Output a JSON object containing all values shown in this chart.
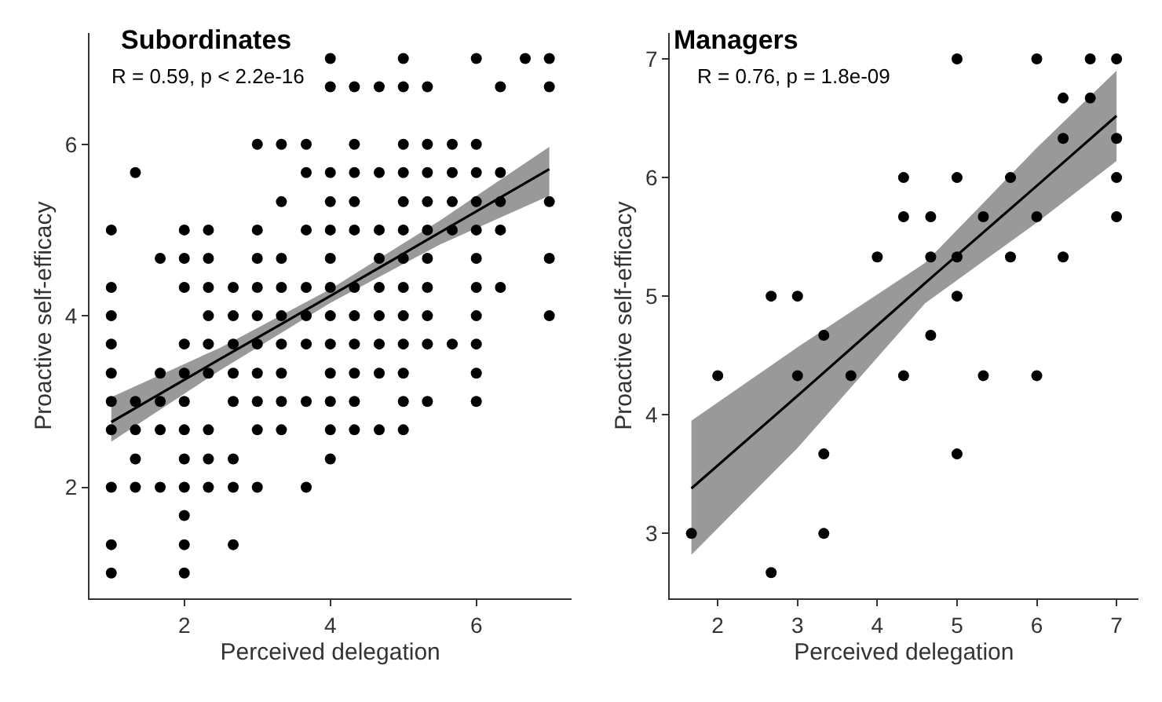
{
  "chart_data": [
    {
      "type": "scatter",
      "title": "Subordinates",
      "xlabel": "Perceived delegation",
      "ylabel": "Proactive self-efficacy",
      "annotations": [
        "R = 0.59, p < 2.2e-16"
      ],
      "xlim": [
        0.7,
        7.3
      ],
      "ylim": [
        0.7,
        7.3
      ],
      "xticks": [
        2,
        4,
        6
      ],
      "yticks": [
        2,
        4,
        6
      ],
      "marker": "circle",
      "series": [
        {
          "color": "#000000",
          "x": [
            4,
            5,
            6,
            6.67,
            7,
            4,
            4.33,
            4.67,
            5,
            5.33,
            6.33,
            7,
            3,
            3.33,
            3.67,
            4.33,
            5,
            5.33,
            5.67,
            6,
            1.33,
            3.67,
            4,
            4.33,
            4.67,
            5,
            5.33,
            5.67,
            6,
            6.33,
            3.33,
            4,
            4.33,
            5,
            5.33,
            5.67,
            6,
            6.33,
            7,
            1,
            2,
            2.33,
            3,
            3.67,
            4,
            4.33,
            4.67,
            5,
            5.33,
            5.67,
            6,
            6.33,
            1.67,
            2,
            2.33,
            3,
            3.33,
            4,
            4.67,
            5,
            5.33,
            6,
            7,
            1,
            2,
            2.33,
            2.67,
            3,
            3.33,
            3.67,
            4,
            4.33,
            4.67,
            5,
            5.33,
            6,
            6.33,
            1,
            2.33,
            2.67,
            3,
            3.33,
            3.67,
            4,
            4.33,
            4.67,
            5,
            5.33,
            6,
            7,
            1,
            2,
            2.33,
            2.67,
            3,
            3.33,
            3.67,
            4,
            4.33,
            4.67,
            5,
            5.33,
            5.67,
            6,
            1,
            1.67,
            2,
            2.33,
            2.67,
            3,
            3.33,
            4,
            4.33,
            4.67,
            5,
            6,
            1,
            1.33,
            1.67,
            2,
            2.67,
            3,
            3.33,
            3.67,
            4,
            4.33,
            5,
            5.33,
            6,
            1,
            1.33,
            1.67,
            2,
            2.33,
            3,
            3.33,
            4,
            4.33,
            4.67,
            5,
            1.33,
            2,
            2.33,
            2.67,
            4,
            1,
            1.33,
            1.67,
            2,
            2.33,
            2.67,
            3,
            3.67,
            2,
            1,
            2,
            2.67,
            1,
            2
          ],
          "values": [
            7,
            7,
            7,
            7,
            7,
            6.67,
            6.67,
            6.67,
            6.67,
            6.67,
            6.67,
            6.67,
            6,
            6,
            6,
            6,
            6,
            6,
            6,
            6,
            5.67,
            5.67,
            5.67,
            5.67,
            5.67,
            5.67,
            5.67,
            5.67,
            5.67,
            5.67,
            5.33,
            5.33,
            5.33,
            5.33,
            5.33,
            5.33,
            5.33,
            5.33,
            5.33,
            5,
            5,
            5,
            5,
            5,
            5,
            5,
            5,
            5,
            5,
            5,
            5,
            5,
            4.67,
            4.67,
            4.67,
            4.67,
            4.67,
            4.67,
            4.67,
            4.67,
            4.67,
            4.67,
            4.67,
            4.33,
            4.33,
            4.33,
            4.33,
            4.33,
            4.33,
            4.33,
            4.33,
            4.33,
            4.33,
            4.33,
            4.33,
            4.33,
            4.33,
            4,
            4,
            4,
            4,
            4,
            4,
            4,
            4,
            4,
            4,
            4,
            4,
            4,
            3.67,
            3.67,
            3.67,
            3.67,
            3.67,
            3.67,
            3.67,
            3.67,
            3.67,
            3.67,
            3.67,
            3.67,
            3.67,
            3.67,
            3.33,
            3.33,
            3.33,
            3.33,
            3.33,
            3.33,
            3.33,
            3.33,
            3.33,
            3.33,
            3.33,
            3.33,
            3,
            3,
            3,
            3,
            3,
            3,
            3,
            3,
            3,
            3,
            3,
            3,
            3,
            2.67,
            2.67,
            2.67,
            2.67,
            2.67,
            2.67,
            2.67,
            2.67,
            2.67,
            2.67,
            2.67,
            2.33,
            2.33,
            2.33,
            2.33,
            2.33,
            2,
            2,
            2,
            2,
            2,
            2,
            2,
            2,
            1.67,
            1.33,
            1.33,
            1.33,
            1,
            1
          ]
        },
        {
          "type": "line",
          "marker": "none",
          "color": "#000000",
          "x": [
            1,
            2.5,
            4,
            5.5,
            7
          ],
          "values": [
            2.76,
            3.5,
            4.23,
            4.97,
            5.71
          ],
          "lower": [
            2.53,
            3.37,
            4.15,
            4.83,
            5.4
          ],
          "upper": [
            3.05,
            3.63,
            4.31,
            5.11,
            5.97
          ]
        }
      ]
    },
    {
      "type": "scatter",
      "title": "Managers",
      "xlabel": "Perceived delegation",
      "ylabel": "Proactive self-efficacy",
      "annotations": [
        "R = 0.76, p = 1.8e-09"
      ],
      "xlim": [
        1.4,
        7.27
      ],
      "ylim": [
        2.45,
        7.22
      ],
      "xticks": [
        2,
        3,
        4,
        5,
        6,
        7
      ],
      "yticks": [
        3,
        4,
        5,
        6,
        7
      ],
      "marker": "circle",
      "series": [
        {
          "color": "#000000",
          "x": [
            5,
            6,
            6.67,
            7,
            6.33,
            6.67,
            6.33,
            7,
            4.33,
            5,
            5.67,
            7,
            4.33,
            4.67,
            5.33,
            6,
            7,
            4,
            4.67,
            5,
            5.67,
            6.33,
            2.67,
            3,
            5,
            3.33,
            4.67,
            2,
            3,
            3.67,
            4.33,
            5.33,
            6,
            3.33,
            5,
            1.67,
            3.33,
            2.67
          ],
          "values": [
            7,
            7,
            7,
            7,
            6.67,
            6.67,
            6.33,
            6.33,
            6,
            6,
            6,
            6,
            5.67,
            5.67,
            5.67,
            5.67,
            5.67,
            5.33,
            5.33,
            5.33,
            5.33,
            5.33,
            5,
            5,
            5,
            4.67,
            4.67,
            4.33,
            4.33,
            4.33,
            4.33,
            4.33,
            4.33,
            3.67,
            3.67,
            3,
            3,
            2.67
          ]
        },
        {
          "type": "line",
          "marker": "none",
          "color": "#000000",
          "x": [
            1.67,
            3,
            4.6,
            6,
            7
          ],
          "values": [
            3.38,
            4.16,
            5.11,
            5.93,
            6.52
          ],
          "lower": [
            2.82,
            3.72,
            4.94,
            5.62,
            6.14
          ],
          "upper": [
            3.95,
            4.57,
            5.28,
            6.25,
            6.9
          ]
        }
      ]
    }
  ]
}
